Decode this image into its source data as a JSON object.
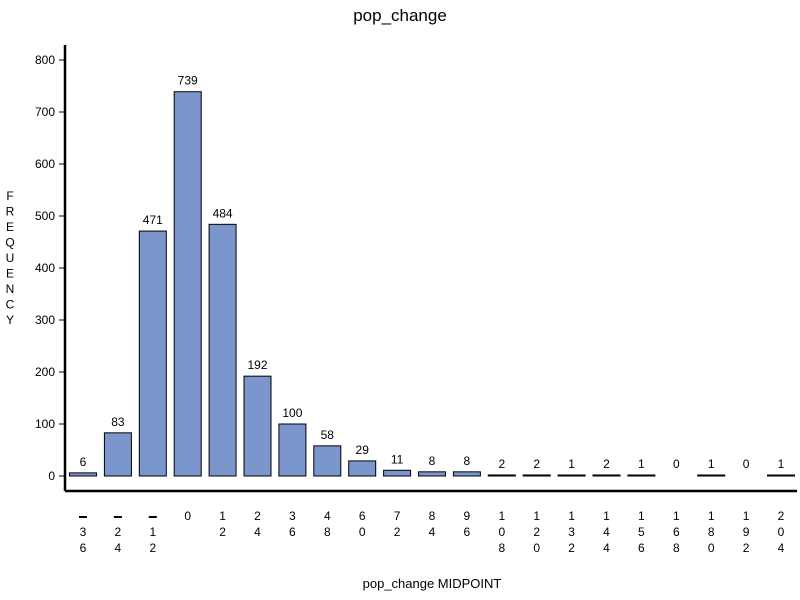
{
  "chart_data": {
    "type": "bar",
    "title": "pop_change",
    "xlabel": "pop_change MIDPOINT",
    "ylabel": "FREQUENCY",
    "categories": [
      "-36",
      "-24",
      "-12",
      "0",
      "12",
      "24",
      "36",
      "48",
      "60",
      "72",
      "84",
      "96",
      "108",
      "120",
      "132",
      "144",
      "156",
      "168",
      "180",
      "192",
      "204"
    ],
    "values": [
      6,
      83,
      471,
      739,
      484,
      192,
      100,
      58,
      29,
      11,
      8,
      8,
      2,
      2,
      1,
      2,
      1,
      0,
      1,
      0,
      1
    ],
    "data_labels": [
      "6",
      "83",
      "471",
      "739",
      "484",
      "192",
      "100",
      "58",
      "29",
      "11",
      "8",
      "8",
      "2",
      "2",
      "1",
      "2",
      "1",
      "0",
      "1",
      "0",
      "1"
    ],
    "yticks": [
      "0",
      "100",
      "200",
      "300",
      "400",
      "500",
      "600",
      "700",
      "800"
    ],
    "ylim": [
      0,
      800
    ],
    "grid": false,
    "bar_color": "#7b96cc",
    "bar_edge_color": "#000000"
  }
}
